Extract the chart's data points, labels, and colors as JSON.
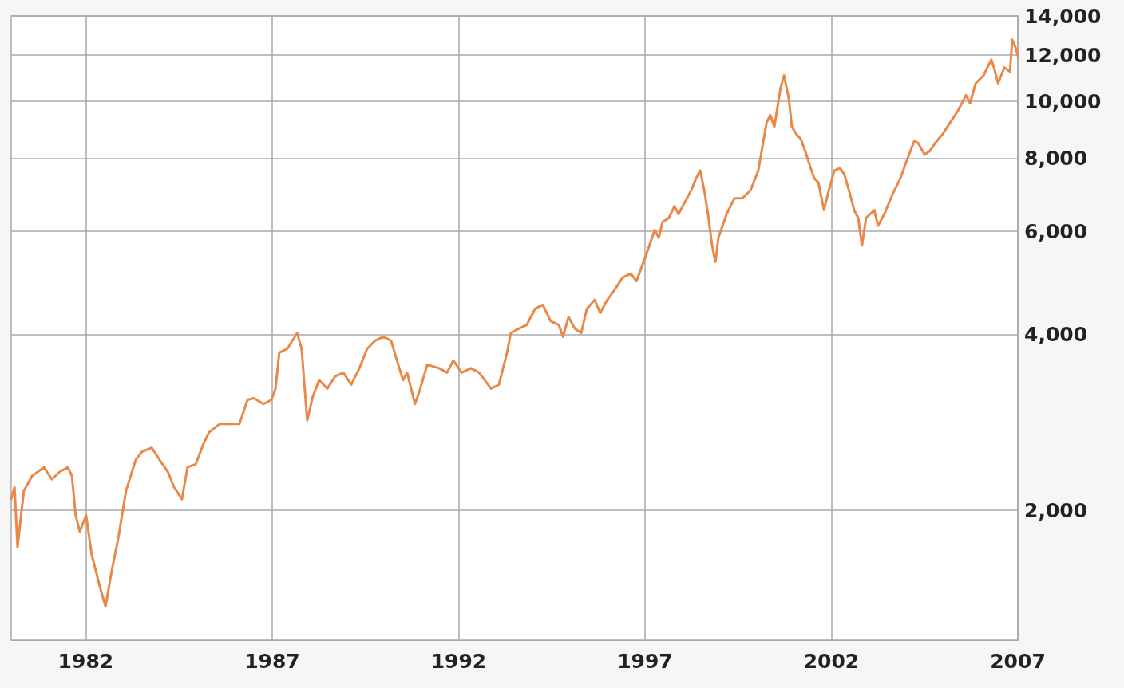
{
  "chart_data": {
    "type": "line",
    "log": "y",
    "grid": true,
    "marker": "none",
    "line_style": "solid",
    "xlim": [
      1980,
      2007
    ],
    "xticks": [
      1982,
      1987,
      1992,
      1997,
      2002,
      2007
    ],
    "ylim": [
      1200,
      14000
    ],
    "yticks": [
      {
        "value": 2000,
        "label": "2,000"
      },
      {
        "value": 4000,
        "label": "4,000"
      },
      {
        "value": 6000,
        "label": "6,000"
      },
      {
        "value": 8000,
        "label": "8,000"
      },
      {
        "value": 10000,
        "label": "10,000"
      },
      {
        "value": 12000,
        "label": "12,000"
      },
      {
        "value": 14000,
        "label": "14,000"
      }
    ],
    "series": [
      {
        "color": "#e8894a",
        "x": [
          1980.0,
          1980.09,
          1980.17,
          1980.34,
          1980.56,
          1980.88,
          1981.09,
          1981.31,
          1981.52,
          1981.63,
          1981.73,
          1981.84,
          1982.01,
          1982.16,
          1982.38,
          1982.53,
          1982.7,
          1982.87,
          1983.08,
          1983.34,
          1983.51,
          1983.77,
          1983.98,
          1984.2,
          1984.37,
          1984.58,
          1984.73,
          1984.95,
          1985.16,
          1985.31,
          1985.59,
          1985.8,
          1986.12,
          1986.34,
          1986.51,
          1986.77,
          1986.98,
          1987.09,
          1987.19,
          1987.41,
          1987.67,
          1987.79,
          1987.94,
          1988.09,
          1988.26,
          1988.48,
          1988.69,
          1988.91,
          1989.12,
          1989.34,
          1989.55,
          1989.76,
          1989.98,
          1990.19,
          1990.41,
          1990.51,
          1990.62,
          1990.83,
          1990.94,
          1991.16,
          1991.48,
          1991.69,
          1991.86,
          1992.08,
          1992.33,
          1992.55,
          1992.87,
          1993.08,
          1993.3,
          1993.4,
          1993.62,
          1993.83,
          1994.05,
          1994.26,
          1994.47,
          1994.69,
          1994.8,
          1994.95,
          1995.12,
          1995.29,
          1995.44,
          1995.65,
          1995.8,
          1995.97,
          1996.19,
          1996.4,
          1996.62,
          1996.77,
          1997.04,
          1997.26,
          1997.37,
          1997.47,
          1997.64,
          1997.79,
          1997.9,
          1998.07,
          1998.24,
          1998.37,
          1998.48,
          1998.59,
          1998.69,
          1998.8,
          1998.89,
          1998.97,
          1999.19,
          1999.4,
          1999.61,
          1999.83,
          2000.04,
          2000.15,
          2000.26,
          2000.36,
          2000.47,
          2000.64,
          2000.73,
          2000.86,
          2000.94,
          2001.07,
          2001.18,
          2001.33,
          2001.43,
          2001.54,
          2001.65,
          2001.8,
          2001.93,
          2002.08,
          2002.23,
          2002.35,
          2002.5,
          2002.61,
          2002.72,
          2002.82,
          2002.93,
          2003.15,
          2003.25,
          2003.42,
          2003.64,
          2003.85,
          2004.0,
          2004.22,
          2004.32,
          2004.5,
          2004.65,
          2004.79,
          2004.97,
          2005.18,
          2005.39,
          2005.61,
          2005.72,
          2005.87,
          2006.08,
          2006.29,
          2006.36,
          2006.47,
          2006.64,
          2006.79,
          2006.85,
          2006.94,
          2007.0
        ],
        "values": [
          2090,
          2190,
          1730,
          2160,
          2290,
          2370,
          2260,
          2330,
          2370,
          2290,
          1960,
          1840,
          1960,
          1680,
          1480,
          1370,
          1580,
          1790,
          2160,
          2440,
          2520,
          2560,
          2440,
          2330,
          2190,
          2090,
          2370,
          2400,
          2600,
          2720,
          2810,
          2810,
          2810,
          3090,
          3110,
          3040,
          3090,
          3230,
          3720,
          3780,
          4020,
          3780,
          2850,
          3130,
          3340,
          3230,
          3390,
          3440,
          3280,
          3500,
          3780,
          3900,
          3960,
          3900,
          3500,
          3340,
          3440,
          3040,
          3180,
          3550,
          3500,
          3440,
          3610,
          3440,
          3500,
          3440,
          3230,
          3280,
          3720,
          4020,
          4090,
          4150,
          4420,
          4490,
          4210,
          4150,
          3960,
          4280,
          4090,
          4020,
          4420,
          4580,
          4350,
          4560,
          4770,
          5000,
          5080,
          4930,
          5490,
          6030,
          5850,
          6220,
          6320,
          6620,
          6420,
          6730,
          7050,
          7390,
          7620,
          7050,
          6420,
          5670,
          5320,
          5850,
          6420,
          6830,
          6830,
          7050,
          7620,
          8370,
          9190,
          9480,
          9050,
          10570,
          11080,
          10090,
          9050,
          8770,
          8630,
          8110,
          7740,
          7390,
          7270,
          6520,
          7050,
          7620,
          7690,
          7500,
          6940,
          6520,
          6320,
          5670,
          6320,
          6520,
          6130,
          6420,
          6940,
          7390,
          7860,
          8550,
          8500,
          8110,
          8240,
          8500,
          8770,
          9190,
          9630,
          10250,
          9930,
          10740,
          11080,
          11790,
          11430,
          10740,
          11430,
          11250,
          12750,
          12360,
          11980
        ]
      }
    ]
  }
}
